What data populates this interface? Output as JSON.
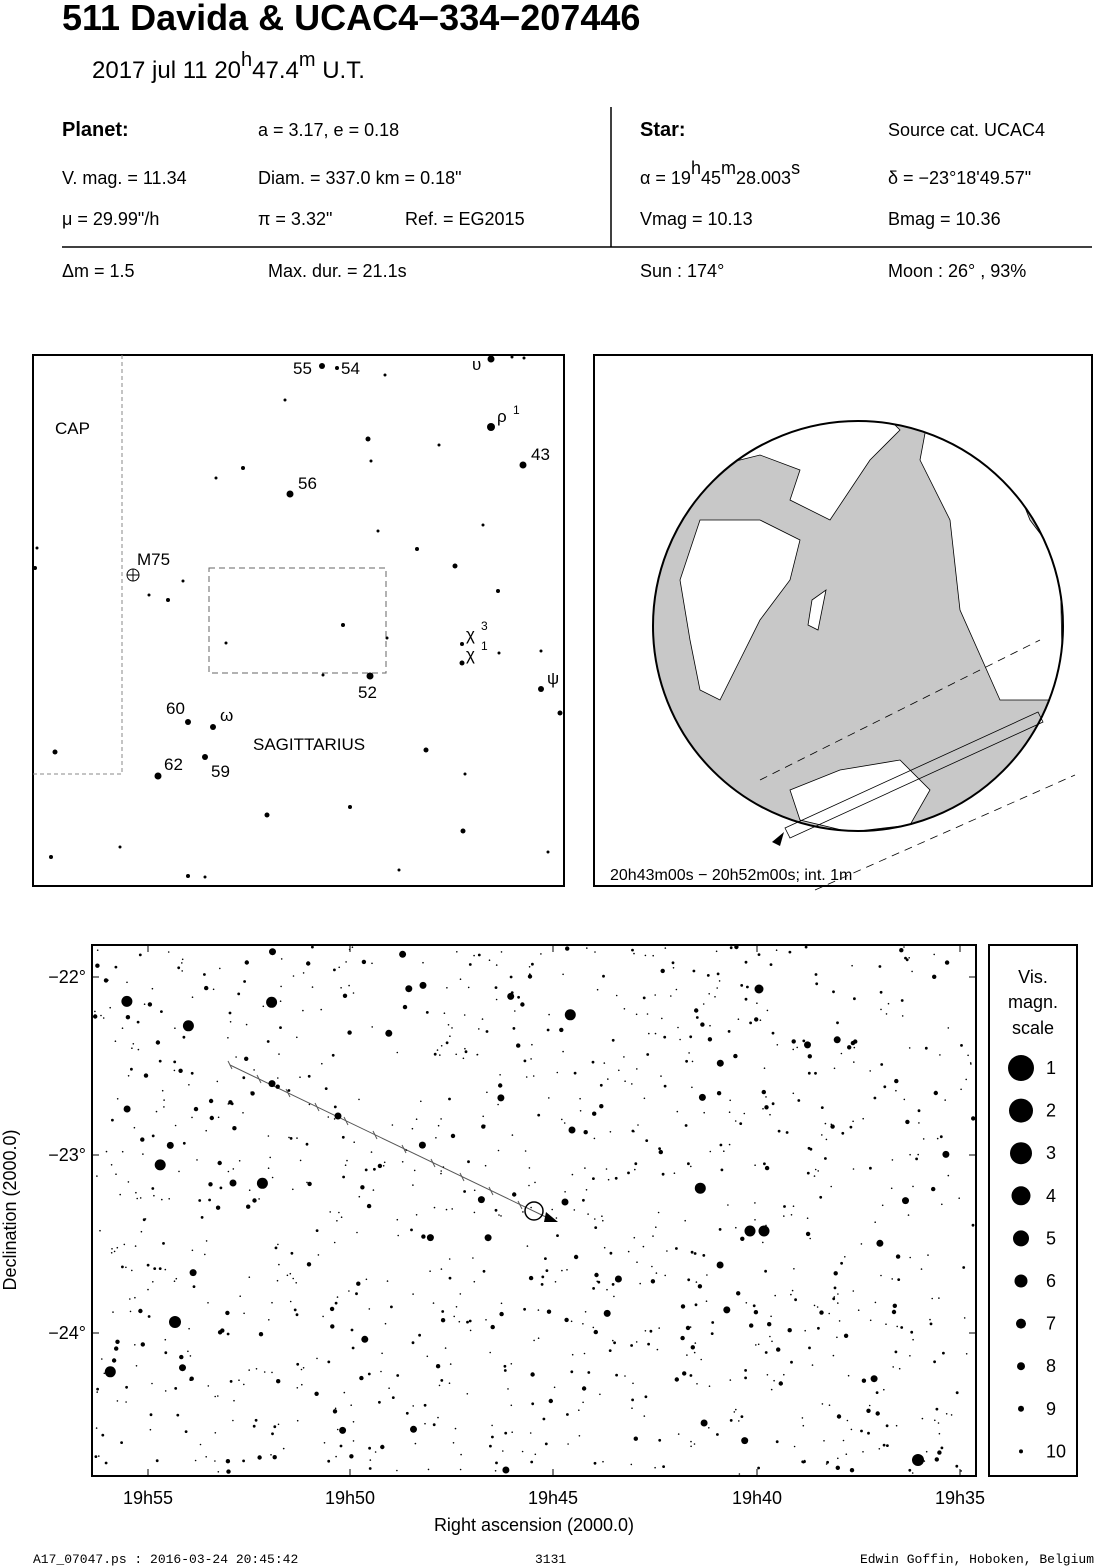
{
  "header": {
    "title": "511 Davida  &  UCAC4−334−207446",
    "date": [
      "2017 jul 11  20",
      "h",
      "47.4",
      "m",
      " U.T."
    ]
  },
  "planet": {
    "heading": "Planet:",
    "orbit": "a = 3.17, e = 0.18",
    "vmag": "V. mag. = 11.34",
    "diam": "Diam. = 337.0 km = 0.18\"",
    "mu": "μ =  29.99\"/h",
    "parallax": "π =  3.32\"",
    "ref": "Ref. = EG2015"
  },
  "star": {
    "heading": "Star:",
    "source": "Source cat.  UCAC4",
    "alpha": [
      "α = 19",
      "h",
      "45",
      "m",
      "28.003",
      "s"
    ],
    "delta": "δ = −23°18'49.57\"",
    "vmag": "Vmag = 10.13",
    "bmag": "Bmag = 10.36"
  },
  "event": {
    "dm": "Δm = 1.5",
    "maxdur": "Max. dur. = 21.1s",
    "sun": "Sun : 174°",
    "moon": "Moon :  26° , 93%"
  },
  "finder": {
    "labels": [
      "55",
      "54",
      "υ",
      "ρ",
      "1",
      "43",
      "CAP",
      "56",
      "M75",
      "χ",
      "3",
      "χ",
      "1",
      "ψ",
      "52",
      "60",
      "ω",
      "SAGITTARIUS",
      "62",
      "59"
    ]
  },
  "globe": {
    "caption": "20h43m00s − 20h52m00s; int.  1m"
  },
  "field": {
    "xticks": [
      "19h55",
      "19h50",
      "19h45",
      "19h40",
      "19h35"
    ],
    "yticks": [
      "−22°",
      "−23°",
      "−24°"
    ],
    "xlabel": "Right ascension (2000.0)",
    "ylabel": "Declination (2000.0)"
  },
  "legend": {
    "title": [
      "Vis.",
      "magn.",
      "scale"
    ],
    "mags": [
      "1",
      "2",
      "3",
      "4",
      "5",
      "6",
      "7",
      "8",
      "9",
      "10"
    ]
  },
  "footer": {
    "file": "A17_07047.ps : 2016-03-24 20:45:42",
    "number": "3131",
    "author": "Edwin Goffin, Hoboken, Belgium"
  }
}
